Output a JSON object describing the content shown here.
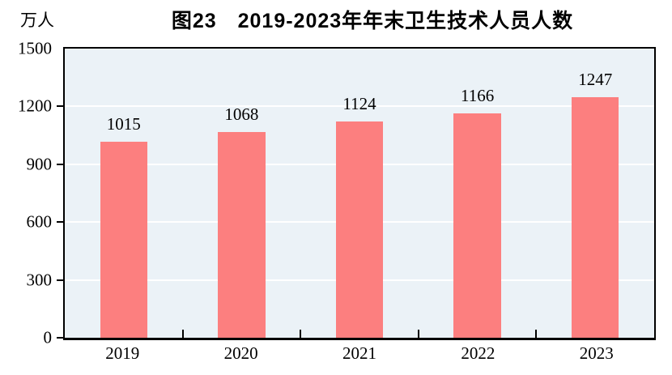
{
  "chart": {
    "title": "图23　2019-2023年年末卫生技术人员人数",
    "unit_label": "万人"
  },
  "chart_data": {
    "type": "bar",
    "title": "图23　2019-2023年年末卫生技术人员人数",
    "categories": [
      "2019",
      "2020",
      "2021",
      "2022",
      "2023"
    ],
    "values": [
      1015,
      1068,
      1124,
      1166,
      1247
    ],
    "xlabel": "",
    "ylabel": "万人",
    "ylim": [
      0,
      1500
    ],
    "yticks": [
      0,
      300,
      600,
      900,
      1200,
      1500
    ],
    "data_labels_visible": true,
    "grid": true,
    "legend_position": "none",
    "bar_color": "#fc7f7f",
    "plot_background_color": "#ebf2f7",
    "gridline_color": "#ffffff",
    "axis_color": "#000000",
    "bar_gap_ratio": 0.6
  }
}
